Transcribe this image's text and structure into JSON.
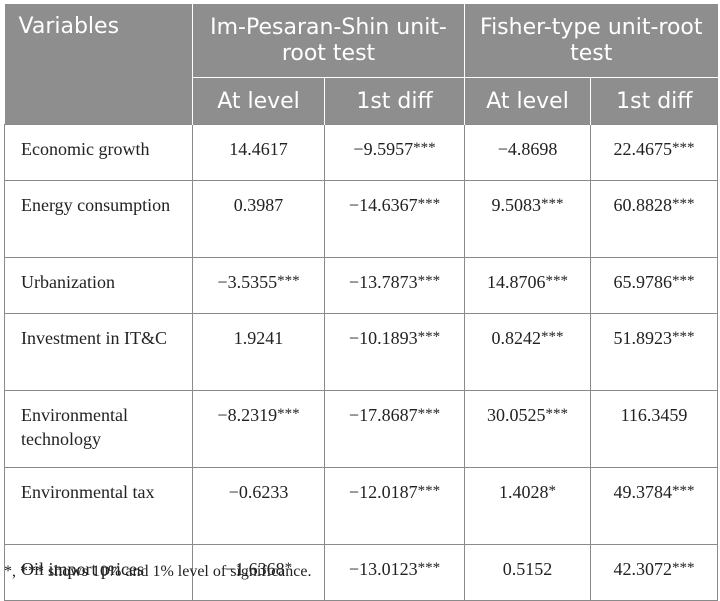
{
  "header": {
    "variables": "Variables",
    "group1": "Im-Pesaran-Shin unit-root test",
    "group2": "Fisher-type unit-root test",
    "sub": [
      "At level",
      "1st diff",
      "At level",
      "1st diff"
    ]
  },
  "rows": [
    {
      "label": "Economic growth",
      "values": [
        "14.4617",
        "−9.5957***",
        "−4.8698",
        "22.4675***"
      ]
    },
    {
      "label": "Energy consumption",
      "values": [
        "0.3987",
        "−14.6367***",
        "9.5083***",
        "60.8828***"
      ]
    },
    {
      "label": "Urbanization",
      "values": [
        "−3.5355***",
        "−13.7873***",
        "14.8706***",
        "65.9786***"
      ]
    },
    {
      "label": "Investment in IT&C",
      "values": [
        "1.9241",
        "−10.1893***",
        "0.8242***",
        "51.8923***"
      ]
    },
    {
      "label": "Environmental technology",
      "values": [
        "−8.2319***",
        "−17.8687***",
        "30.0525***",
        "116.3459"
      ]
    },
    {
      "label": "Environmental tax",
      "values": [
        "−0.6233",
        "−12.0187***",
        "1.4028*",
        "49.3784***"
      ]
    },
    {
      "label": "Oil import prices",
      "values": [
        "−1.6368*",
        "−13.0123***",
        "0.5152",
        "42.3072***"
      ]
    }
  ],
  "note": "*, *** shows 10% and 1% level of significance."
}
